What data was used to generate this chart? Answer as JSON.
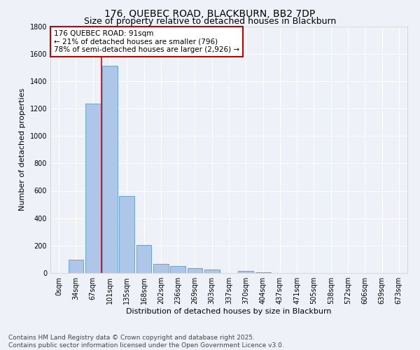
{
  "title": "176, QUEBEC ROAD, BLACKBURN, BB2 7DP",
  "subtitle": "Size of property relative to detached houses in Blackburn",
  "xlabel": "Distribution of detached houses by size in Blackburn",
  "ylabel": "Number of detached properties",
  "bar_color": "#aec6e8",
  "bar_edge_color": "#5b9bd5",
  "background_color": "#eef2f8",
  "grid_color": "#ffffff",
  "categories": [
    "0sqm",
    "34sqm",
    "67sqm",
    "101sqm",
    "135sqm",
    "168sqm",
    "202sqm",
    "236sqm",
    "269sqm",
    "303sqm",
    "337sqm",
    "370sqm",
    "404sqm",
    "437sqm",
    "471sqm",
    "505sqm",
    "538sqm",
    "572sqm",
    "606sqm",
    "639sqm",
    "673sqm"
  ],
  "values": [
    0,
    95,
    1235,
    1510,
    560,
    205,
    65,
    50,
    38,
    28,
    0,
    15,
    5,
    2,
    2,
    0,
    0,
    0,
    0,
    0,
    0
  ],
  "ylim": [
    0,
    1800
  ],
  "yticks": [
    0,
    200,
    400,
    600,
    800,
    1000,
    1200,
    1400,
    1600,
    1800
  ],
  "vline_x": 2.5,
  "vline_color": "#cc0000",
  "annotation_text": "176 QUEBEC ROAD: 91sqm\n← 21% of detached houses are smaller (796)\n78% of semi-detached houses are larger (2,926) →",
  "annotation_box_color": "#ffffff",
  "annotation_box_edge_color": "#cc0000",
  "footer_line1": "Contains HM Land Registry data © Crown copyright and database right 2025.",
  "footer_line2": "Contains public sector information licensed under the Open Government Licence v3.0.",
  "title_fontsize": 10,
  "subtitle_fontsize": 9,
  "axis_label_fontsize": 8,
  "tick_fontsize": 7,
  "annotation_fontsize": 7.5,
  "footer_fontsize": 6.5
}
